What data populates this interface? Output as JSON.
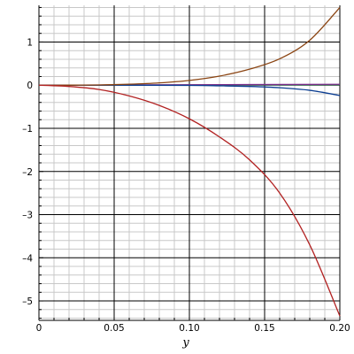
{
  "chart_data": {
    "type": "line",
    "title": "",
    "xlabel": "y",
    "ylabel": "",
    "xlim": [
      0,
      0.2
    ],
    "ylim": [
      -5.45,
      1.85
    ],
    "grid": true,
    "legend": "none",
    "x_ticks": [
      {
        "value": 0,
        "label": "0"
      },
      {
        "value": 0.05,
        "label": "0.05"
      },
      {
        "value": 0.1,
        "label": "0.10"
      },
      {
        "value": 0.15,
        "label": "0.15"
      },
      {
        "value": 0.2,
        "label": "0.20"
      }
    ],
    "y_ticks": [
      {
        "value": 1,
        "label": "1"
      },
      {
        "value": 0,
        "label": "0"
      },
      {
        "value": -1,
        "label": "-1"
      },
      {
        "value": -2,
        "label": "-2"
      },
      {
        "value": -3,
        "label": "-3"
      },
      {
        "value": -4,
        "label": "-4"
      },
      {
        "value": -5,
        "label": "-5"
      }
    ],
    "series": [
      {
        "color": "#8b4513",
        "x": [
          0,
          0.02,
          0.04,
          0.06,
          0.08,
          0.1,
          0.12,
          0.14,
          0.16,
          0.18,
          0.2
        ],
        "y": [
          0,
          0.0001,
          0.005,
          0.022,
          0.053,
          0.11,
          0.21,
          0.37,
          0.61,
          1.04,
          1.8
        ]
      },
      {
        "color": "#b22222",
        "x": [
          0,
          0.02,
          0.04,
          0.06,
          0.08,
          0.1,
          0.12,
          0.14,
          0.16,
          0.18,
          0.2
        ],
        "y": [
          0,
          -0.03,
          -0.1,
          -0.25,
          -0.47,
          -0.78,
          -1.2,
          -1.73,
          -2.5,
          -3.7,
          -5.35
        ]
      },
      {
        "color": "#0b3d91",
        "x": [
          0,
          0.05,
          0.1,
          0.12,
          0.14,
          0.16,
          0.18,
          0.2
        ],
        "y": [
          0,
          -0.001,
          -0.006,
          -0.015,
          -0.03,
          -0.06,
          -0.12,
          -0.24
        ]
      },
      {
        "color": "#7b2d8b",
        "x": [
          0,
          0.1,
          0.2
        ],
        "y": [
          0,
          0.01,
          0.02
        ]
      },
      {
        "color": "#2e8b57",
        "x": [
          0,
          0.1,
          0.2
        ],
        "y": [
          0,
          0.004,
          0.01
        ]
      }
    ]
  }
}
